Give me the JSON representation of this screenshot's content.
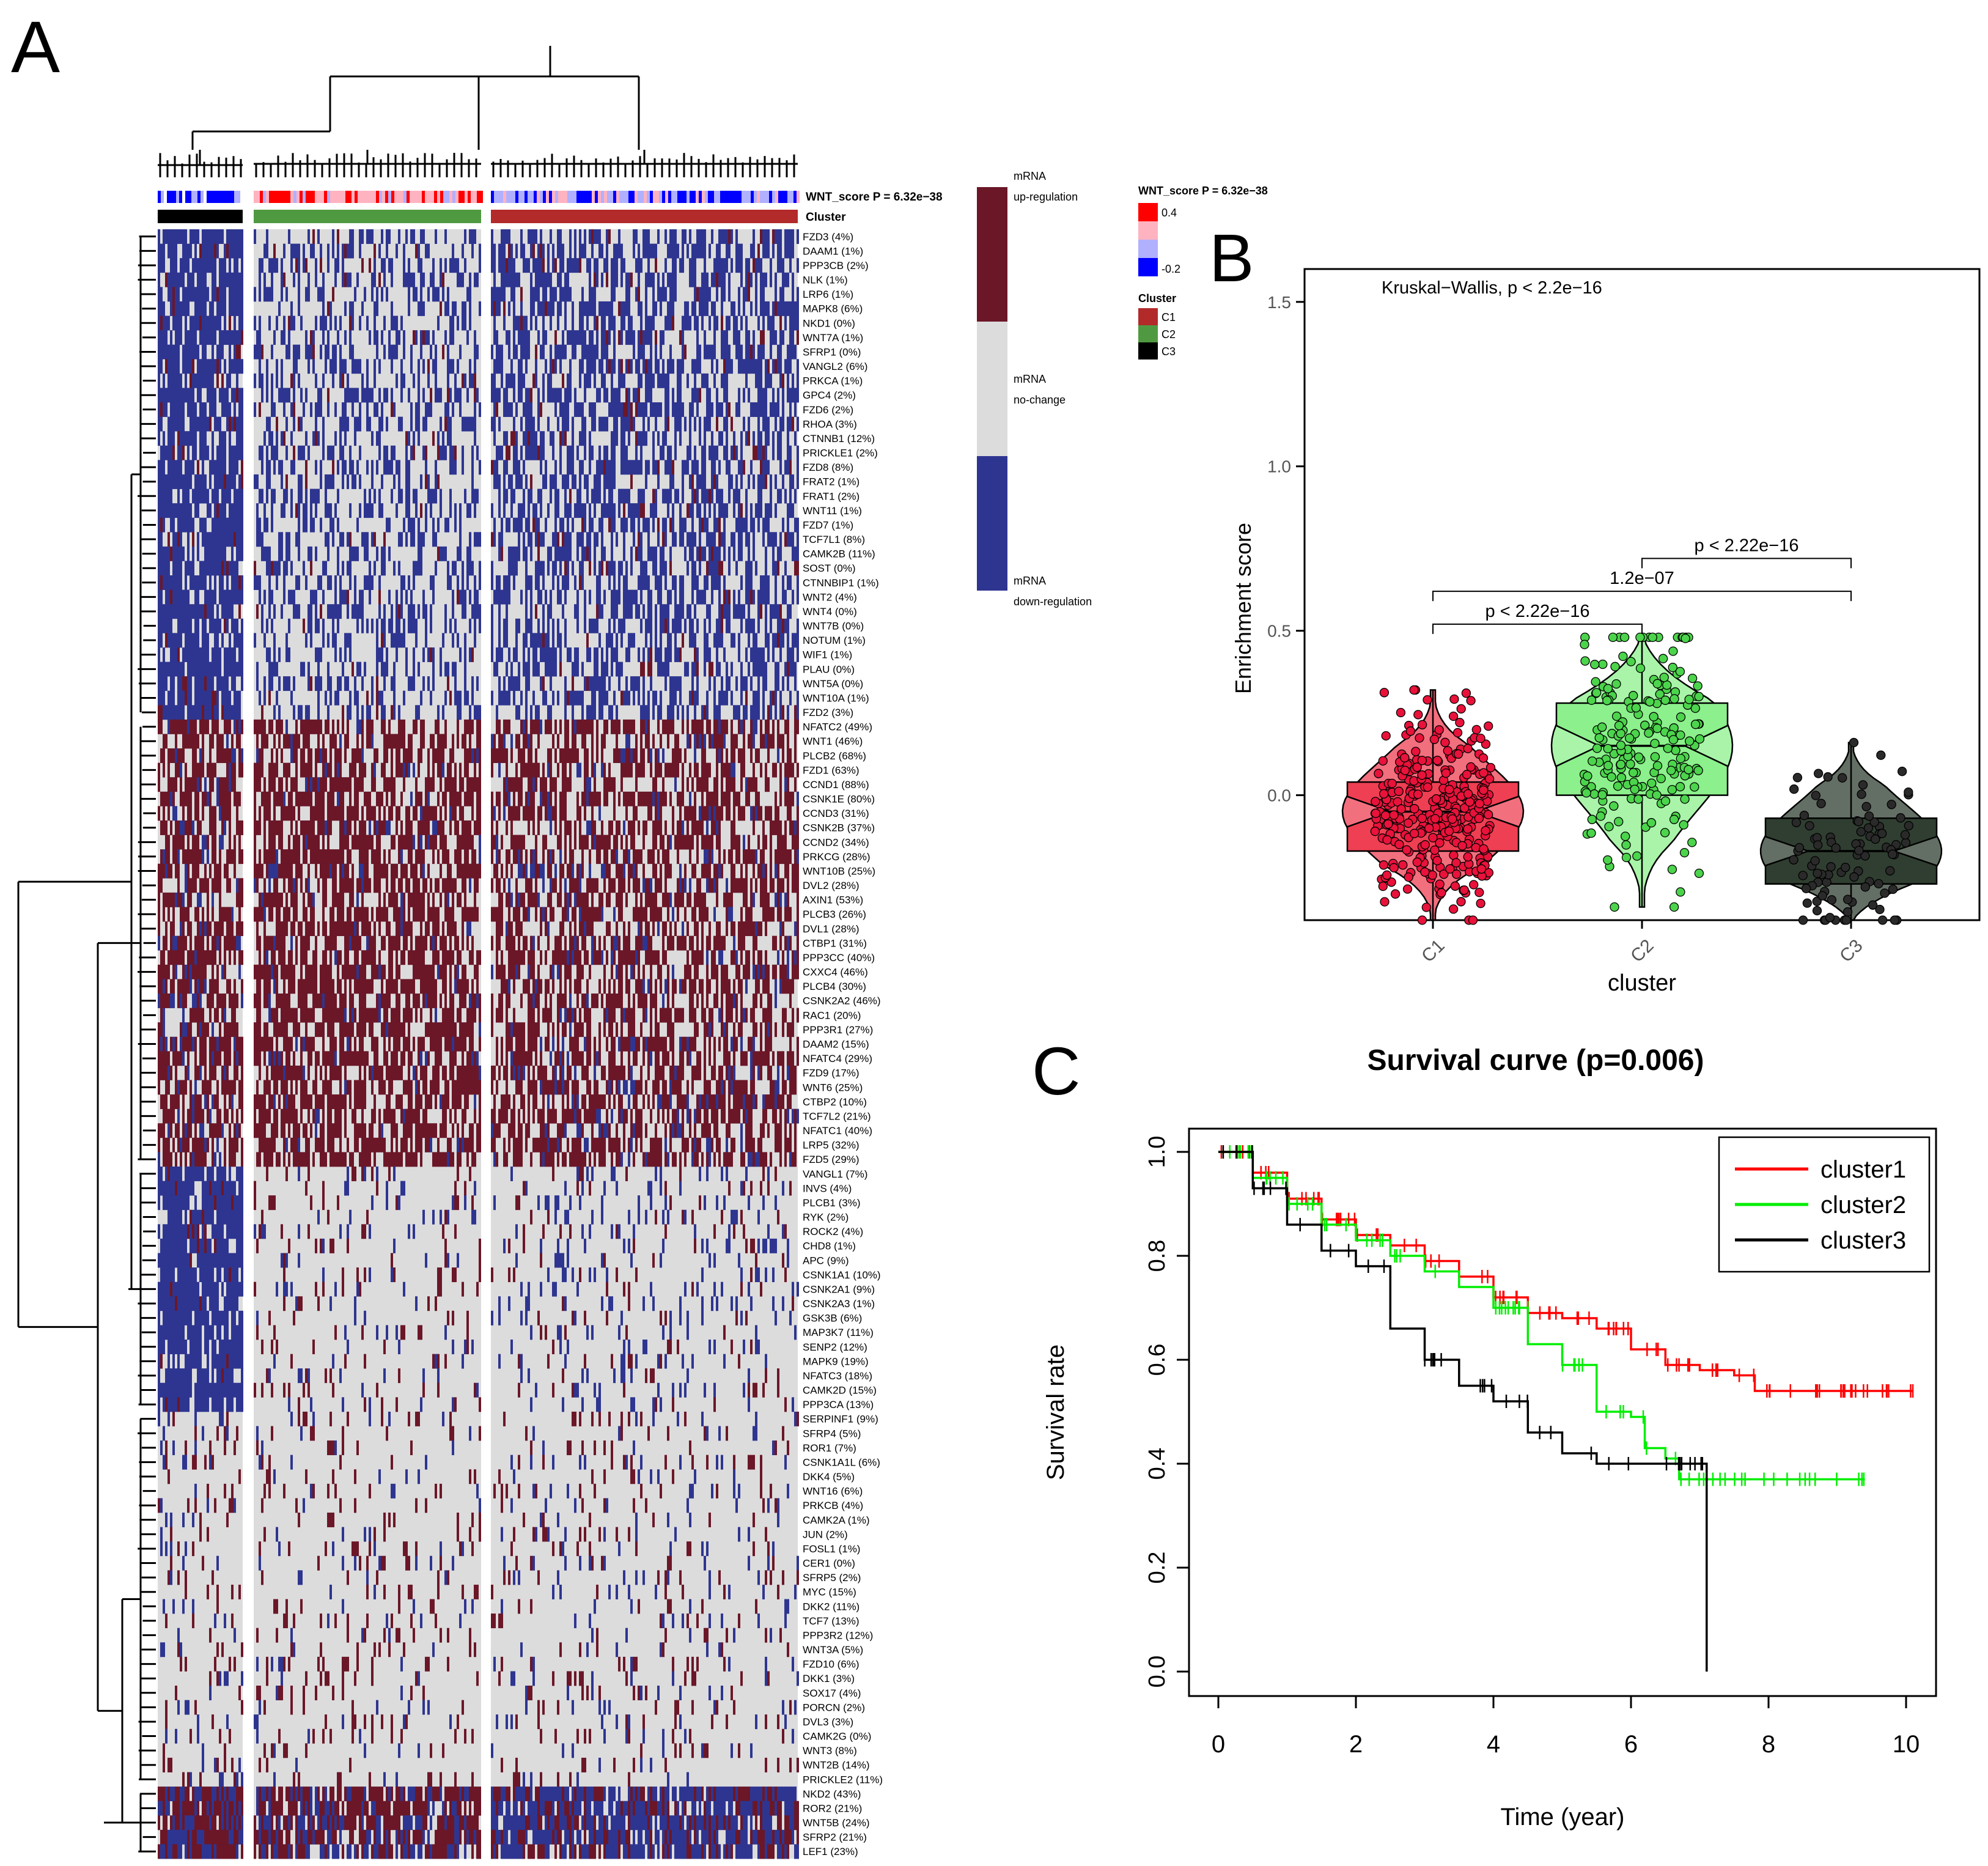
{
  "colors": {
    "up": "#6b1728",
    "down": "#2e3590",
    "nochange": "#dcdcdc",
    "c1": "#b22a2a",
    "c2": "#4f9a41",
    "c3": "#000000",
    "wnt_high": "#ff0000",
    "wnt_mid": "#ffb3c0",
    "wnt_low2": "#b0b0ff",
    "wnt_low": "#0000ff",
    "cluster1_line": "#ff0000",
    "cluster2_line": "#00ee00",
    "cluster3_line": "#000000"
  },
  "panel_a": {
    "letter": "A",
    "wnt_row_label": "WNT_score P = 6.32e−38",
    "cluster_row_label": "Cluster",
    "state_legend": {
      "up": [
        "mRNA",
        "up-regulation"
      ],
      "nochange": [
        "mRNA",
        "no-change"
      ],
      "down": [
        "mRNA",
        "down-regulation"
      ]
    },
    "wnt_legend": {
      "title": "WNT_score P = 6.32e−38",
      "max_label": "0.4",
      "min_label": "-0.2"
    },
    "cluster_legend": {
      "title": "Cluster",
      "items": [
        "C1",
        "C2",
        "C3"
      ]
    },
    "genes": [
      "FZD3 (4%)",
      "DAAM1 (1%)",
      "PPP3CB (2%)",
      "NLK (1%)",
      "LRP6 (1%)",
      "MAPK8 (6%)",
      "NKD1 (0%)",
      "WNT7A (1%)",
      "SFRP1 (0%)",
      "VANGL2 (6%)",
      "PRKCA (1%)",
      "GPC4 (2%)",
      "FZD6 (2%)",
      "RHOA (3%)",
      "CTNNB1 (12%)",
      "PRICKLE1 (2%)",
      "FZD8 (8%)",
      "FRAT2 (1%)",
      "FRAT1 (2%)",
      "WNT11 (1%)",
      "FZD7 (1%)",
      "TCF7L1 (8%)",
      "CAMK2B (11%)",
      "SOST (0%)",
      "CTNNBIP1 (1%)",
      "WNT2 (4%)",
      "WNT4 (0%)",
      "WNT7B (0%)",
      "NOTUM (1%)",
      "WIF1 (1%)",
      "PLAU (0%)",
      "WNT5A (0%)",
      "WNT10A (1%)",
      "FZD2 (3%)",
      "NFATC2 (49%)",
      "WNT1 (46%)",
      "PLCB2 (68%)",
      "FZD1 (63%)",
      "CCND1 (88%)",
      "CSNK1E (80%)",
      "CCND3 (31%)",
      "CSNK2B (37%)",
      "CCND2 (34%)",
      "PRKCG (28%)",
      "WNT10B (25%)",
      "DVL2 (28%)",
      "AXIN1 (53%)",
      "PLCB3 (26%)",
      "DVL1 (28%)",
      "CTBP1 (31%)",
      "PPP3CC (40%)",
      "CXXC4 (46%)",
      "PLCB4 (30%)",
      "CSNK2A2 (46%)",
      "RAC1 (20%)",
      "PPP3R1 (27%)",
      "DAAM2 (15%)",
      "NFATC4 (29%)",
      "FZD9 (17%)",
      "WNT6 (25%)",
      "CTBP2 (10%)",
      "TCF7L2 (21%)",
      "NFATC1 (40%)",
      "LRP5 (32%)",
      "FZD5 (29%)",
      "VANGL1 (7%)",
      "INVS (4%)",
      "PLCB1 (3%)",
      "RYK (2%)",
      "ROCK2 (4%)",
      "CHD8 (1%)",
      "APC (9%)",
      "CSNK1A1 (10%)",
      "CSNK2A1 (9%)",
      "CSNK2A3 (1%)",
      "GSK3B (6%)",
      "MAP3K7 (11%)",
      "SENP2 (12%)",
      "MAPK9 (19%)",
      "NFATC3 (18%)",
      "CAMK2D (15%)",
      "PPP3CA (13%)",
      "SERPINF1 (9%)",
      "SFRP4 (5%)",
      "ROR1 (7%)",
      "CSNK1A1L (6%)",
      "DKK4 (5%)",
      "WNT16 (6%)",
      "PRKCB (4%)",
      "CAMK2A (1%)",
      "JUN (2%)",
      "FOSL1 (1%)",
      "CER1 (0%)",
      "SFRP5 (2%)",
      "MYC (15%)",
      "DKK2 (11%)",
      "TCF7 (13%)",
      "PPP3R2 (12%)",
      "WNT3A (5%)",
      "FZD10 (6%)",
      "DKK1 (3%)",
      "SOX17 (4%)",
      "PORCN (2%)",
      "DVL3 (3%)",
      "CAMK2G (0%)",
      "WNT3 (8%)",
      "WNT2B (14%)",
      "PRICKLE2 (11%)",
      "NKD2 (43%)",
      "ROR2 (21%)",
      "WNT5B (24%)",
      "SFRP2 (21%)",
      "LEF1 (23%)"
    ]
  },
  "panel_b": {
    "letter": "B",
    "annotation": "Kruskal−Wallis, p < 2.2e−16",
    "comparisons": [
      {
        "groups": [
          "C1",
          "C2"
        ],
        "label": "p < 2.22e−16",
        "y": 0.52
      },
      {
        "groups": [
          "C1",
          "C3"
        ],
        "label": "1.2e−07",
        "y": 0.62
      },
      {
        "groups": [
          "C2",
          "C3"
        ],
        "label": "p < 2.22e−16",
        "y": 0.72
      }
    ]
  },
  "panel_c": {
    "letter": "C",
    "title": "Survival curve (p=0.006)"
  },
  "chart_data": [
    {
      "type": "heatmap",
      "title": "",
      "rows": 113,
      "column_clusters": [
        "C3",
        "C2",
        "C1"
      ],
      "legend": [
        "mRNA up-regulation",
        "mRNA no-change",
        "mRNA down-regulation"
      ]
    },
    {
      "type": "scatter",
      "title": "",
      "xlabel": "cluster",
      "ylabel": "Enrichment score",
      "categories": [
        "C1",
        "C2",
        "C3"
      ],
      "ylim": [
        -0.38,
        1.6
      ],
      "yticks": [
        0.0,
        0.5,
        1.0,
        1.5
      ],
      "ytick_labels": [
        "0.0",
        "0.5",
        "1.0",
        "1.5"
      ],
      "groups": [
        {
          "name": "C1",
          "n": 330,
          "min": -0.38,
          "q1": -0.17,
          "median": -0.05,
          "q3": 0.04,
          "max": 0.32,
          "fill": "#ee3f53",
          "point": "#e8123a"
        },
        {
          "name": "C2",
          "n": 200,
          "min": -0.34,
          "q1": 0.0,
          "median": 0.15,
          "q3": 0.28,
          "max": 0.48,
          "fill": "#8cf08c",
          "point": "#4cd44c"
        },
        {
          "name": "C3",
          "n": 95,
          "min": -0.38,
          "q1": -0.27,
          "median": -0.17,
          "q3": -0.07,
          "max": 0.16,
          "fill": "#2f3e30",
          "point": "#2a2a2a"
        }
      ]
    },
    {
      "type": "line",
      "title": "Survival curve (p=0.006)",
      "xlabel": "Time (year)",
      "ylabel": "Survival rate",
      "xlim": [
        0,
        10
      ],
      "ylim": [
        0,
        1
      ],
      "xticks": [
        0,
        2,
        4,
        6,
        8,
        10
      ],
      "xtick_labels": [
        "0",
        "2",
        "4",
        "6",
        "8",
        "10"
      ],
      "yticks": [
        0,
        0.2,
        0.4,
        0.6,
        0.8,
        1.0
      ],
      "ytick_labels": [
        "0.0",
        "0.2",
        "0.4",
        "0.6",
        "0.8",
        "1.0"
      ],
      "legend": [
        "cluster1",
        "cluster2",
        "cluster3"
      ],
      "series": [
        {
          "name": "cluster1",
          "x": [
            0,
            0.5,
            1,
            1.5,
            2,
            2.5,
            3,
            3.5,
            4,
            4.5,
            5,
            5.5,
            6,
            6.5,
            7,
            7.5,
            7.8,
            8.5,
            10.1
          ],
          "y": [
            1.0,
            0.96,
            0.91,
            0.87,
            0.84,
            0.82,
            0.79,
            0.76,
            0.72,
            0.69,
            0.68,
            0.66,
            0.62,
            0.59,
            0.58,
            0.57,
            0.54,
            0.54,
            0.54
          ]
        },
        {
          "name": "cluster2",
          "x": [
            0,
            0.5,
            1,
            1.5,
            2,
            2.5,
            3,
            3.5,
            4,
            4.5,
            5,
            5.5,
            6,
            6.2,
            6.5,
            6.7,
            7,
            8,
            9.4
          ],
          "y": [
            1.0,
            0.95,
            0.9,
            0.86,
            0.83,
            0.8,
            0.77,
            0.74,
            0.7,
            0.63,
            0.59,
            0.5,
            0.49,
            0.43,
            0.41,
            0.37,
            0.37,
            0.37,
            0.37
          ]
        },
        {
          "name": "cluster3",
          "x": [
            0,
            0.5,
            1,
            1.5,
            2,
            2.5,
            3,
            3.5,
            4,
            4.5,
            5,
            5.5,
            6,
            6.5,
            7,
            7.1,
            7.1
          ],
          "y": [
            1.0,
            0.93,
            0.86,
            0.81,
            0.78,
            0.66,
            0.6,
            0.55,
            0.52,
            0.46,
            0.42,
            0.4,
            0.4,
            0.4,
            0.4,
            0.4,
            0.0
          ]
        }
      ]
    }
  ]
}
